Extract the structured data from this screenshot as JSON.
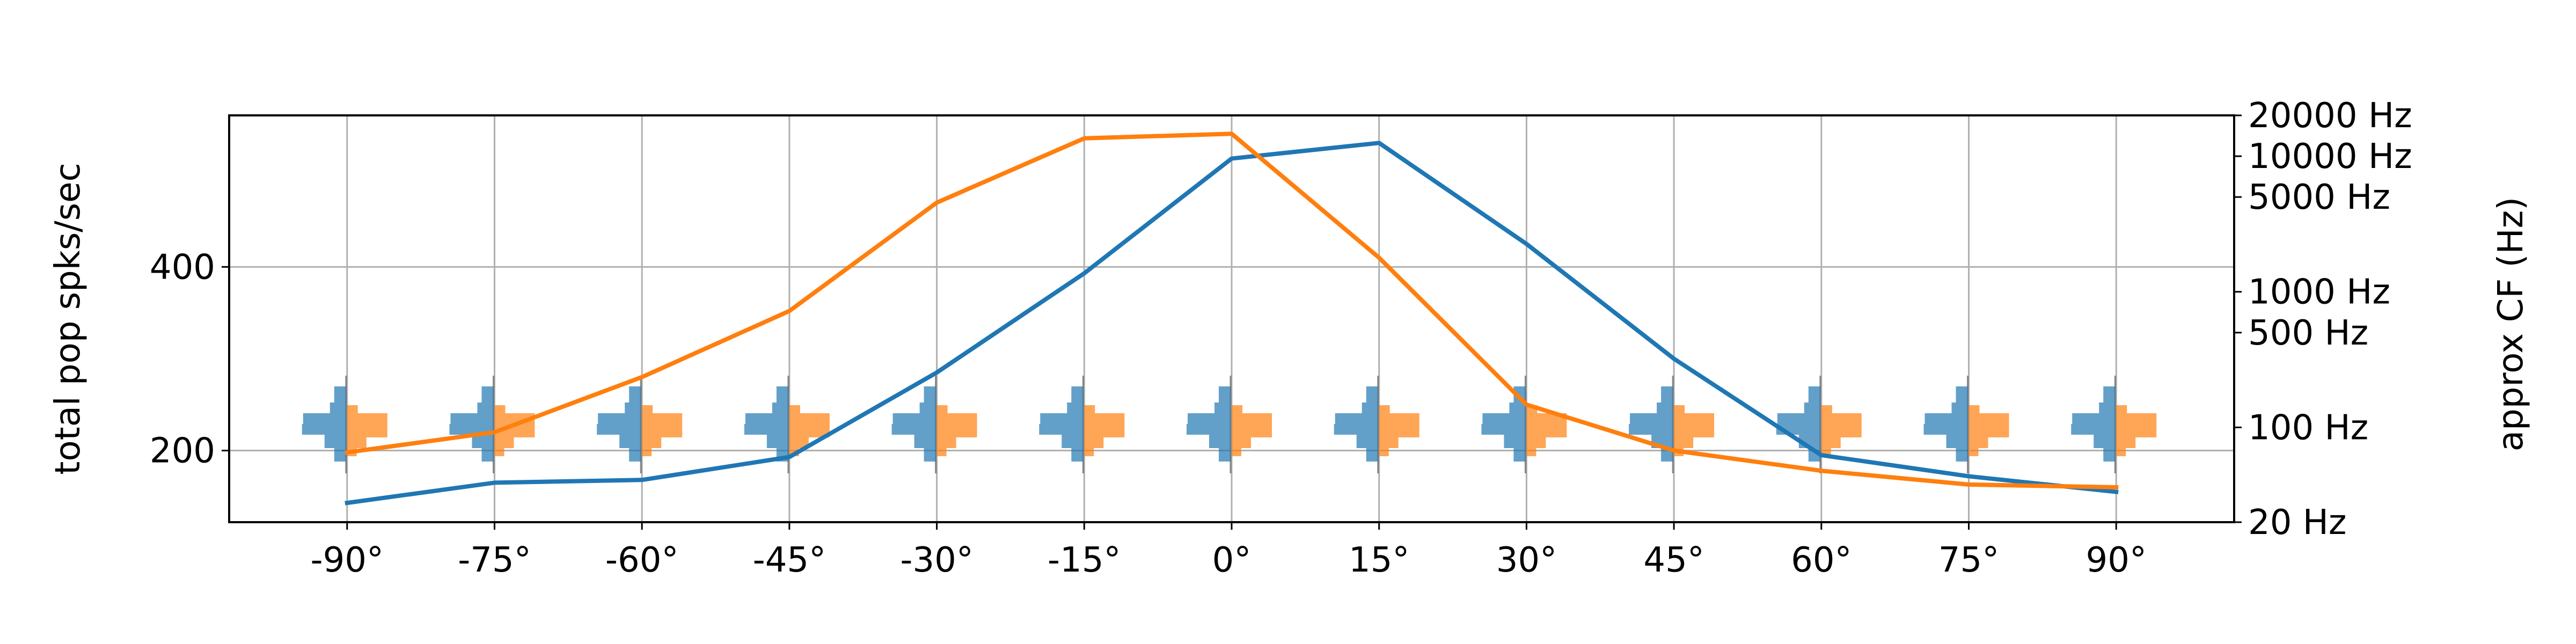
{
  "chart_data": {
    "type": "line",
    "title": "",
    "xlabel": "",
    "ylabel": "total pop spks/sec",
    "ylabel_right": "approx CF (Hz)",
    "grid": true,
    "x": [
      -90,
      -75,
      -60,
      -45,
      -30,
      -15,
      0,
      15,
      30,
      45,
      60,
      75,
      90
    ],
    "x_tick_labels": [
      "-90°",
      "-75°",
      "-60°",
      "-45°",
      "-30°",
      "-15°",
      "0°",
      "15°",
      "30°",
      "45°",
      "60°",
      "75°",
      "90°"
    ],
    "xlim": [
      -102,
      102
    ],
    "ylim": [
      122,
      565
    ],
    "y_ticks": [
      200,
      400
    ],
    "y_tick_labels": [
      "200",
      "400"
    ],
    "right_axis": {
      "scale": "log",
      "ylim": [
        20,
        20000
      ],
      "ticks": [
        20,
        100,
        500,
        1000,
        5000,
        10000,
        20000
      ],
      "tick_labels": [
        "20 Hz",
        "100 Hz",
        "500 Hz",
        "1000 Hz",
        "5000 Hz",
        "10000 Hz",
        "20000 Hz"
      ]
    },
    "series": [
      {
        "color": "#1f77b4",
        "values": [
          143,
          165,
          168,
          193,
          285,
          393,
          518,
          535,
          425,
          300,
          195,
          172,
          155
        ]
      },
      {
        "color": "#ff7f0e",
        "values": [
          198,
          220,
          280,
          352,
          470,
          540,
          545,
          410,
          250,
          200,
          178,
          163,
          160
        ]
      }
    ],
    "inset_markers": {
      "colors": [
        "#1f77b4",
        "#ff7f0e"
      ]
    }
  }
}
